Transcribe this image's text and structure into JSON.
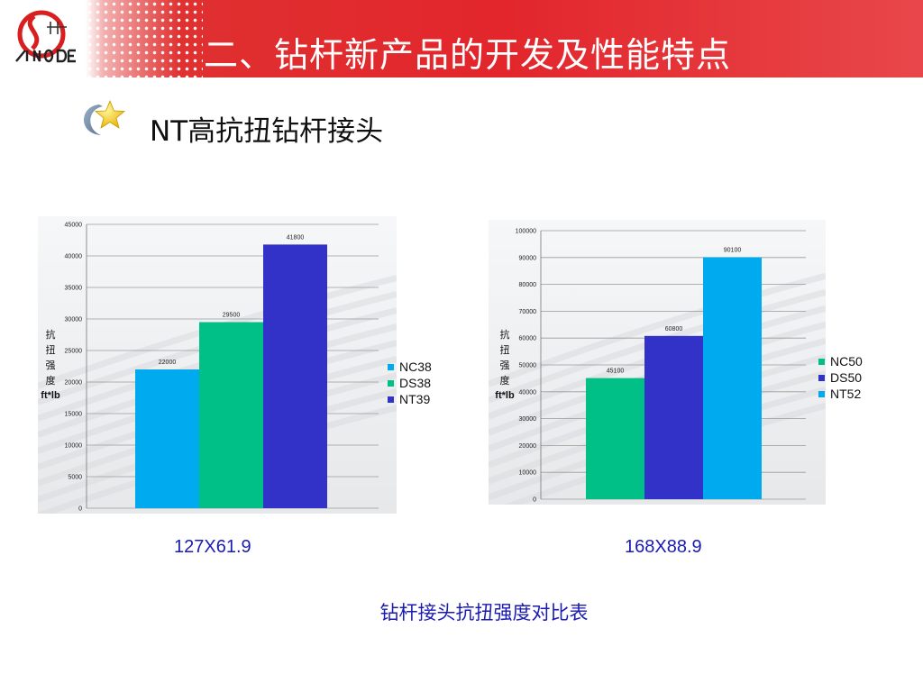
{
  "header": {
    "title": "二、钻杆新产品的开发及性能特点",
    "brand_color": "#e2262c"
  },
  "subtitle": {
    "text": "NT高抗扭钻杆接头",
    "icon": "star-swoosh-icon"
  },
  "chart_data": [
    {
      "type": "bar",
      "categories": [
        "NC38",
        "DS38",
        "NT39"
      ],
      "values": [
        22000,
        29500,
        41800
      ],
      "data_labels": [
        "22000",
        "29500",
        "41800"
      ],
      "colors": [
        "#00aaee",
        "#00c087",
        "#3232c8"
      ],
      "legend": [
        "NC38",
        "DS38",
        "NT39"
      ],
      "legend_colors": [
        "#00aaee",
        "#00c087",
        "#3232c8"
      ],
      "legend_position": "right",
      "ylabel_chars": [
        "抗",
        "扭",
        "强",
        "度"
      ],
      "ylabel_unit": "ft*lb",
      "ylim": [
        0,
        45000
      ],
      "yticks": [
        0,
        5000,
        10000,
        15000,
        20000,
        25000,
        30000,
        35000,
        40000,
        45000
      ],
      "caption": "127X61.9",
      "grid": true
    },
    {
      "type": "bar",
      "categories": [
        "NC50",
        "DS50",
        "NT52"
      ],
      "values": [
        45100,
        60800,
        90100
      ],
      "data_labels": [
        "45100",
        "60800",
        "90100"
      ],
      "colors": [
        "#00c087",
        "#3232c8",
        "#00aaee"
      ],
      "legend": [
        "NC50",
        "DS50",
        "NT52"
      ],
      "legend_colors": [
        "#00c087",
        "#3232c8",
        "#00aaee"
      ],
      "legend_position": "right",
      "ylabel_chars": [
        "抗",
        "扭",
        "强",
        "度"
      ],
      "ylabel_unit": "ft*lb",
      "ylim": [
        0,
        100000
      ],
      "yticks": [
        0,
        10000,
        20000,
        30000,
        40000,
        50000,
        60000,
        70000,
        80000,
        90000,
        100000
      ],
      "caption": "168X88.9",
      "grid": true
    }
  ],
  "bottom_caption": "钻杆接头抗扭强度对比表"
}
